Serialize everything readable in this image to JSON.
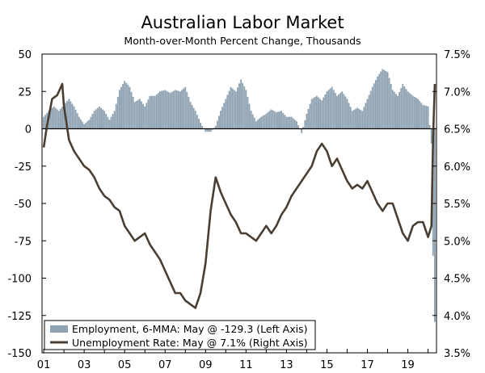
{
  "chart_data": {
    "type": "bar+line",
    "title": "Australian Labor Market",
    "subtitle": "Month-over-Month Percent Change, Thousands",
    "x_axis": {
      "type": "date",
      "range": [
        "2000-12",
        "2020-06"
      ],
      "tick_labels": [
        "01",
        "03",
        "05",
        "07",
        "09",
        "11",
        "13",
        "15",
        "17",
        "19"
      ]
    },
    "y_left": {
      "ylim": [
        -150,
        50
      ],
      "ticks": [
        50,
        25,
        0,
        -25,
        -50,
        -75,
        -100,
        -125,
        -150
      ],
      "tick_labels": [
        "50",
        "25",
        "0",
        "-25",
        "-50",
        "-75",
        "-100",
        "-125",
        "-150"
      ]
    },
    "y_right": {
      "ylim": [
        3.5,
        7.5
      ],
      "ticks": [
        7.5,
        7.0,
        6.5,
        6.0,
        5.5,
        5.0,
        4.5,
        4.0,
        3.5
      ],
      "tick_labels": [
        "7.5%",
        "7.0%",
        "6.5%",
        "6.0%",
        "5.5%",
        "5.0%",
        "4.5%",
        "4.0%",
        "3.5%"
      ]
    },
    "legend": {
      "placement": "bottom-left",
      "entries": [
        "Employment, 6-MMA: May @ -129.3 (Left Axis)",
        "Unemployment Rate: May @ 7.1% (Right Axis)"
      ]
    },
    "colors": {
      "bars": "#8ea2b2",
      "line": "#4a3e33",
      "zero_line": "#000000"
    },
    "series": [
      {
        "name": "Employment, 6-MMA",
        "axis": "left",
        "type": "bar",
        "points": [
          [
            "2001-01",
            8
          ],
          [
            "2001-04",
            12
          ],
          [
            "2001-07",
            15
          ],
          [
            "2001-10",
            12
          ],
          [
            "2002-01",
            16
          ],
          [
            "2002-04",
            20
          ],
          [
            "2002-07",
            15
          ],
          [
            "2002-10",
            8
          ],
          [
            "2003-01",
            3
          ],
          [
            "2003-04",
            6
          ],
          [
            "2003-07",
            12
          ],
          [
            "2003-10",
            15
          ],
          [
            "2004-01",
            12
          ],
          [
            "2004-04",
            6
          ],
          [
            "2004-07",
            12
          ],
          [
            "2004-10",
            26
          ],
          [
            "2005-01",
            32
          ],
          [
            "2005-04",
            28
          ],
          [
            "2005-07",
            18
          ],
          [
            "2005-10",
            20
          ],
          [
            "2006-01",
            15
          ],
          [
            "2006-04",
            22
          ],
          [
            "2006-07",
            22
          ],
          [
            "2006-10",
            25
          ],
          [
            "2007-01",
            26
          ],
          [
            "2007-04",
            24
          ],
          [
            "2007-07",
            26
          ],
          [
            "2007-10",
            25
          ],
          [
            "2008-01",
            28
          ],
          [
            "2008-04",
            18
          ],
          [
            "2008-07",
            12
          ],
          [
            "2008-10",
            4
          ],
          [
            "2009-01",
            -2
          ],
          [
            "2009-04",
            -2
          ],
          [
            "2009-07",
            2
          ],
          [
            "2009-10",
            12
          ],
          [
            "2010-01",
            20
          ],
          [
            "2010-04",
            28
          ],
          [
            "2010-07",
            25
          ],
          [
            "2010-10",
            33
          ],
          [
            "2011-01",
            26
          ],
          [
            "2011-04",
            12
          ],
          [
            "2011-07",
            5
          ],
          [
            "2011-10",
            8
          ],
          [
            "2012-01",
            10
          ],
          [
            "2012-04",
            13
          ],
          [
            "2012-07",
            11
          ],
          [
            "2012-10",
            12
          ],
          [
            "2013-01",
            8
          ],
          [
            "2013-04",
            8
          ],
          [
            "2013-07",
            5
          ],
          [
            "2013-10",
            -3
          ],
          [
            "2014-01",
            10
          ],
          [
            "2014-04",
            20
          ],
          [
            "2014-07",
            22
          ],
          [
            "2014-10",
            19
          ],
          [
            "2015-01",
            25
          ],
          [
            "2015-04",
            28
          ],
          [
            "2015-07",
            22
          ],
          [
            "2015-10",
            25
          ],
          [
            "2016-01",
            20
          ],
          [
            "2016-04",
            12
          ],
          [
            "2016-07",
            14
          ],
          [
            "2016-10",
            12
          ],
          [
            "2017-01",
            20
          ],
          [
            "2017-04",
            28
          ],
          [
            "2017-07",
            35
          ],
          [
            "2017-10",
            40
          ],
          [
            "2018-01",
            38
          ],
          [
            "2018-04",
            26
          ],
          [
            "2018-07",
            22
          ],
          [
            "2018-10",
            30
          ],
          [
            "2019-01",
            25
          ],
          [
            "2019-04",
            22
          ],
          [
            "2019-07",
            20
          ],
          [
            "2019-10",
            16
          ],
          [
            "2020-01",
            15
          ],
          [
            "2020-03",
            -10
          ],
          [
            "2020-04",
            -85
          ],
          [
            "2020-05",
            -129.3
          ]
        ]
      },
      {
        "name": "Unemployment Rate",
        "axis": "right",
        "type": "line",
        "points": [
          [
            "2001-01",
            6.25
          ],
          [
            "2001-03",
            6.55
          ],
          [
            "2001-06",
            6.9
          ],
          [
            "2001-09",
            6.95
          ],
          [
            "2001-12",
            7.1
          ],
          [
            "2002-01",
            6.8
          ],
          [
            "2002-04",
            6.35
          ],
          [
            "2002-07",
            6.2
          ],
          [
            "2002-10",
            6.1
          ],
          [
            "2003-01",
            6.0
          ],
          [
            "2003-04",
            5.95
          ],
          [
            "2003-07",
            5.85
          ],
          [
            "2003-10",
            5.7
          ],
          [
            "2004-01",
            5.6
          ],
          [
            "2004-04",
            5.55
          ],
          [
            "2004-07",
            5.45
          ],
          [
            "2004-10",
            5.4
          ],
          [
            "2005-01",
            5.2
          ],
          [
            "2005-04",
            5.1
          ],
          [
            "2005-07",
            5.0
          ],
          [
            "2005-10",
            5.05
          ],
          [
            "2006-01",
            5.1
          ],
          [
            "2006-04",
            4.95
          ],
          [
            "2006-07",
            4.85
          ],
          [
            "2006-10",
            4.75
          ],
          [
            "2007-01",
            4.6
          ],
          [
            "2007-04",
            4.45
          ],
          [
            "2007-07",
            4.3
          ],
          [
            "2007-10",
            4.3
          ],
          [
            "2008-01",
            4.2
          ],
          [
            "2008-04",
            4.15
          ],
          [
            "2008-07",
            4.1
          ],
          [
            "2008-10",
            4.3
          ],
          [
            "2009-01",
            4.7
          ],
          [
            "2009-04",
            5.4
          ],
          [
            "2009-07",
            5.85
          ],
          [
            "2009-10",
            5.65
          ],
          [
            "2010-01",
            5.5
          ],
          [
            "2010-04",
            5.35
          ],
          [
            "2010-07",
            5.25
          ],
          [
            "2010-10",
            5.1
          ],
          [
            "2011-01",
            5.1
          ],
          [
            "2011-04",
            5.05
          ],
          [
            "2011-07",
            5.0
          ],
          [
            "2011-10",
            5.1
          ],
          [
            "2012-01",
            5.2
          ],
          [
            "2012-04",
            5.1
          ],
          [
            "2012-07",
            5.2
          ],
          [
            "2012-10",
            5.35
          ],
          [
            "2013-01",
            5.45
          ],
          [
            "2013-04",
            5.6
          ],
          [
            "2013-07",
            5.7
          ],
          [
            "2013-10",
            5.8
          ],
          [
            "2014-01",
            5.9
          ],
          [
            "2014-04",
            6.0
          ],
          [
            "2014-07",
            6.2
          ],
          [
            "2014-10",
            6.3
          ],
          [
            "2015-01",
            6.2
          ],
          [
            "2015-04",
            6.0
          ],
          [
            "2015-07",
            6.1
          ],
          [
            "2015-10",
            5.95
          ],
          [
            "2016-01",
            5.8
          ],
          [
            "2016-04",
            5.7
          ],
          [
            "2016-07",
            5.75
          ],
          [
            "2016-10",
            5.7
          ],
          [
            "2017-01",
            5.8
          ],
          [
            "2017-04",
            5.65
          ],
          [
            "2017-07",
            5.5
          ],
          [
            "2017-10",
            5.4
          ],
          [
            "2018-01",
            5.5
          ],
          [
            "2018-04",
            5.5
          ],
          [
            "2018-07",
            5.3
          ],
          [
            "2018-10",
            5.1
          ],
          [
            "2019-01",
            5.0
          ],
          [
            "2019-04",
            5.2
          ],
          [
            "2019-07",
            5.25
          ],
          [
            "2019-10",
            5.25
          ],
          [
            "2020-01",
            5.05
          ],
          [
            "2020-03",
            5.2
          ],
          [
            "2020-04",
            6.4
          ],
          [
            "2020-05",
            7.1
          ]
        ]
      }
    ]
  }
}
